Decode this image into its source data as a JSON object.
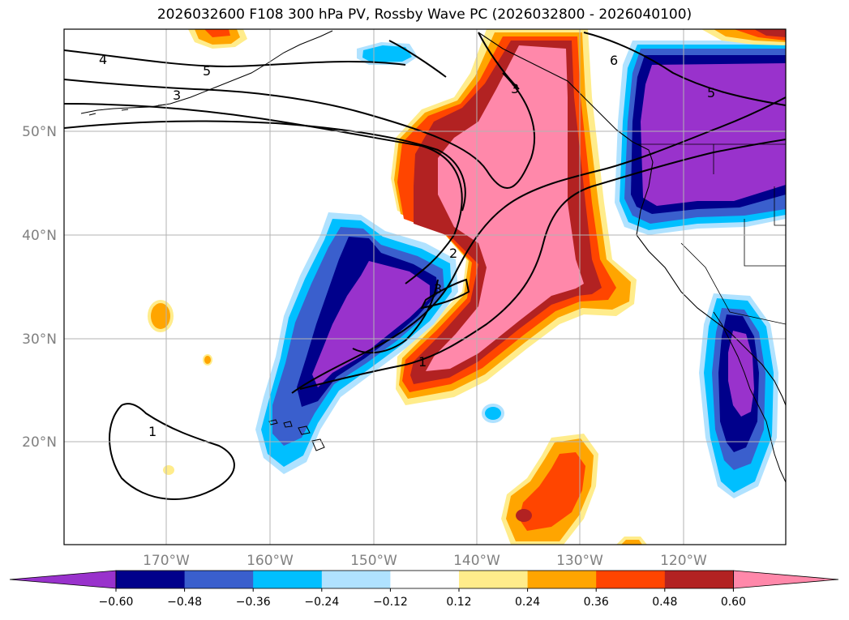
{
  "title": "2026032600 F108 300 hPa PV, Rossby Wave PC (2026032800 - 2026040100)",
  "map": {
    "lat_labels": [
      "50°N",
      "40°N",
      "30°N",
      "20°N"
    ],
    "lon_labels": [
      "170°W",
      "160°W",
      "150°W",
      "140°W",
      "130°W",
      "120°W"
    ],
    "contour_labels": [
      "4",
      "5",
      "3",
      "6",
      "5",
      "3",
      "2",
      "3",
      "1",
      "1"
    ],
    "gridlines": true
  },
  "colorbar": {
    "ticks": [
      "−0.60",
      "−0.48",
      "−0.36",
      "−0.24",
      "−0.12",
      "0.12",
      "0.24",
      "0.36",
      "0.48",
      "0.60"
    ],
    "colors": [
      "#9932cc",
      "#00008b",
      "#3a5fcd",
      "#00bfff",
      "#b0e2ff",
      "#ffffff",
      "#ffec8b",
      "#ffa500",
      "#ff4500",
      "#b22222",
      "#ff88aa"
    ],
    "extend": "both"
  }
}
